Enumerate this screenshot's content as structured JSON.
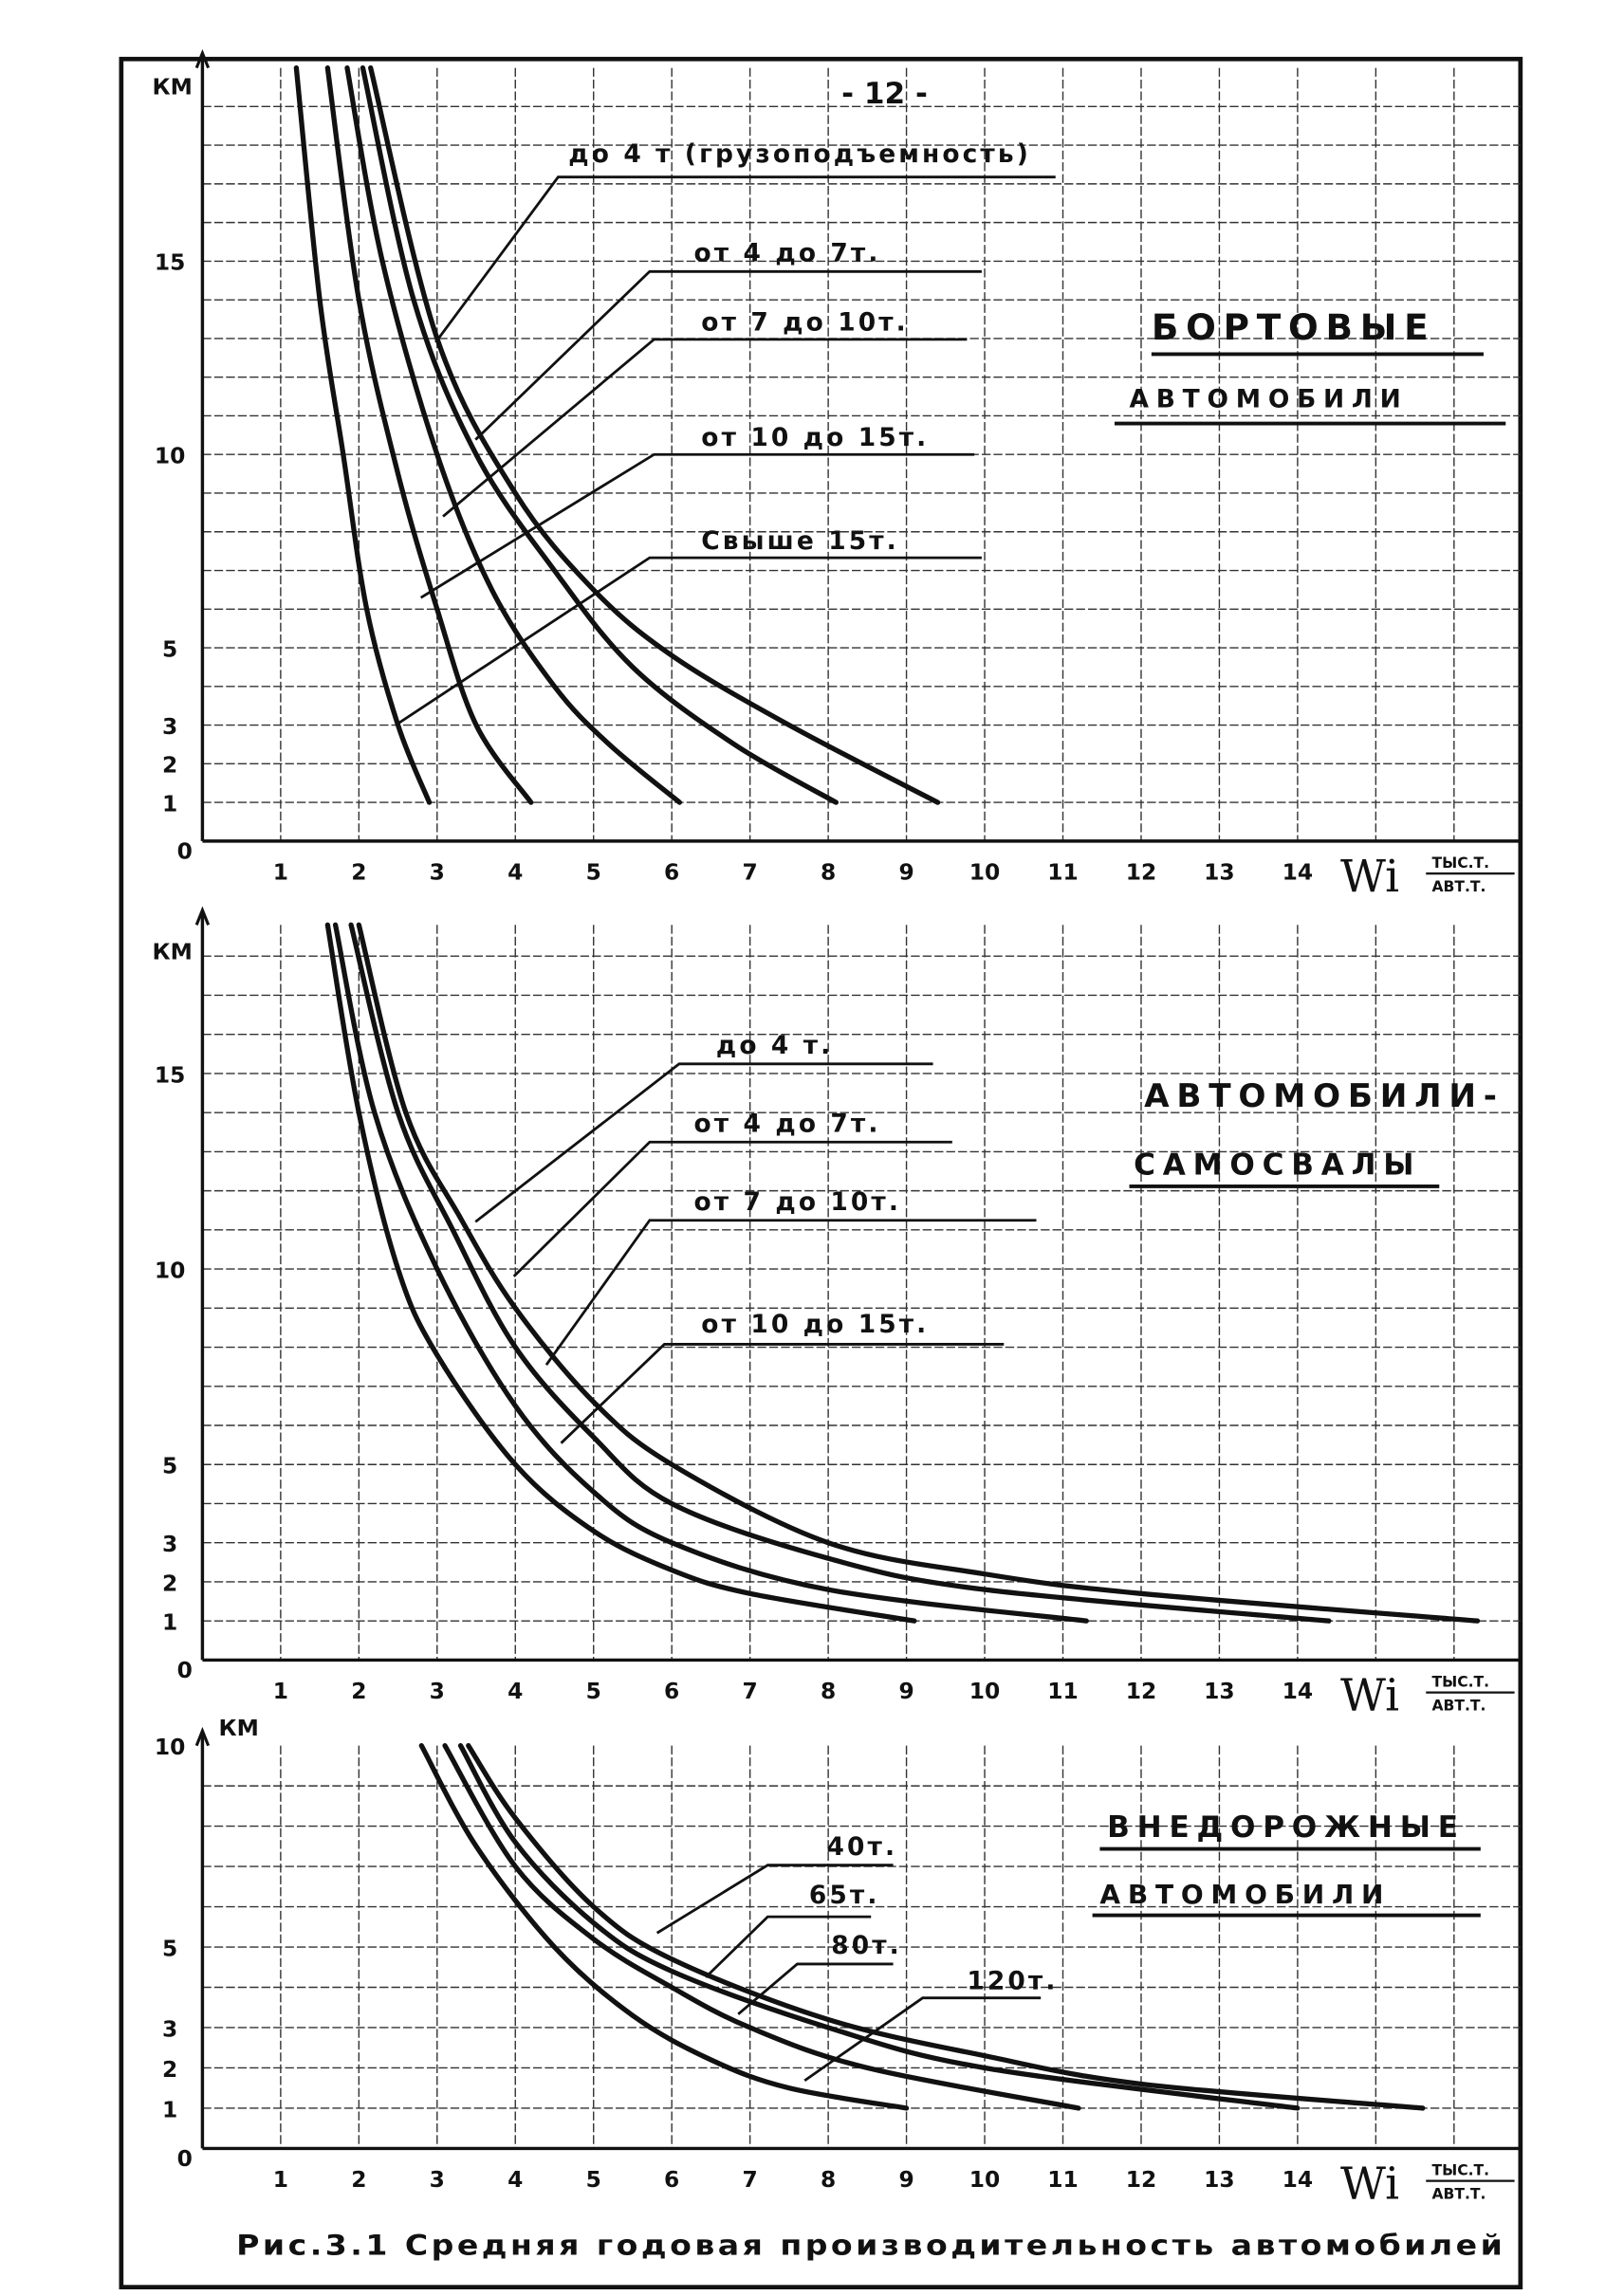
{
  "page_number": "- 12 -",
  "caption": "Рис.3.1  Средняя годовая производительность автомобилей",
  "chart_data": [
    {
      "type": "line",
      "title": [
        "Бортовые",
        "автомобили"
      ],
      "xlabel": "Wi, тыс.т / авт.т",
      "ylabel": "км",
      "xlim": [
        0,
        16.8
      ],
      "ylim": [
        0,
        20
      ],
      "xticks": [
        1,
        2,
        3,
        4,
        5,
        6,
        7,
        8,
        9,
        10,
        11,
        12,
        13,
        14
      ],
      "yticks": [
        15,
        10,
        5,
        3,
        2,
        1
      ],
      "grid": true,
      "series": [
        {
          "name": "до 4 т (грузоподъемность)",
          "points": [
            [
              2.15,
              20
            ],
            [
              3,
              13
            ],
            [
              4,
              9
            ],
            [
              5,
              6.5
            ],
            [
              6,
              4.8
            ],
            [
              7.5,
              3
            ],
            [
              9.4,
              1
            ]
          ]
        },
        {
          "name": "от 4 до 7т.",
          "points": [
            [
              2.05,
              20
            ],
            [
              2.7,
              14
            ],
            [
              3.5,
              10
            ],
            [
              4.5,
              7
            ],
            [
              5.5,
              4.5
            ],
            [
              6.8,
              2.5
            ],
            [
              8.1,
              1
            ]
          ]
        },
        {
          "name": "от 7 до 10т.",
          "points": [
            [
              1.85,
              20
            ],
            [
              2.3,
              15
            ],
            [
              3,
              10
            ],
            [
              3.7,
              6.5
            ],
            [
              4.5,
              4
            ],
            [
              5.2,
              2.5
            ],
            [
              6.1,
              1
            ]
          ]
        },
        {
          "name": "от 10 до 15т.",
          "points": [
            [
              1.6,
              20
            ],
            [
              2,
              14
            ],
            [
              2.5,
              9.5
            ],
            [
              3,
              6
            ],
            [
              3.5,
              3
            ],
            [
              4.2,
              1
            ]
          ]
        },
        {
          "name": "Свыше 15т.",
          "points": [
            [
              1.2,
              20
            ],
            [
              1.5,
              14
            ],
            [
              1.8,
              10
            ],
            [
              2.1,
              6
            ],
            [
              2.5,
              3
            ],
            [
              2.9,
              1
            ]
          ]
        }
      ]
    },
    {
      "type": "line",
      "title": [
        "Автомобили-",
        "самосвалы"
      ],
      "xlabel": "Wi, тыс.т / авт.т",
      "ylabel": "км",
      "xlim": [
        0,
        16.8
      ],
      "ylim": [
        0,
        18.8
      ],
      "xticks": [
        1,
        2,
        3,
        4,
        5,
        6,
        7,
        8,
        9,
        10,
        11,
        12,
        13,
        14
      ],
      "yticks": [
        15,
        10,
        5,
        3,
        2,
        1
      ],
      "grid": true,
      "series": [
        {
          "name": "до 4 т.",
          "points": [
            [
              2,
              18.8
            ],
            [
              2.6,
              14
            ],
            [
              3.3,
              11.3
            ],
            [
              4,
              9
            ],
            [
              5,
              6.6
            ],
            [
              6,
              5
            ],
            [
              8,
              3
            ],
            [
              10,
              2.2
            ],
            [
              12,
              1.7
            ],
            [
              16.3,
              1
            ]
          ]
        },
        {
          "name": "от 4 до 7т.",
          "points": [
            [
              1.9,
              18.8
            ],
            [
              2.5,
              14
            ],
            [
              3.2,
              11
            ],
            [
              4,
              8
            ],
            [
              5,
              5.7
            ],
            [
              6,
              4
            ],
            [
              8,
              2.6
            ],
            [
              10,
              1.8
            ],
            [
              14.4,
              1
            ]
          ]
        },
        {
          "name": "от 7 до 10т.",
          "points": [
            [
              1.7,
              18.8
            ],
            [
              2.2,
              14
            ],
            [
              3,
              10
            ],
            [
              4,
              6.5
            ],
            [
              5,
              4.3
            ],
            [
              6,
              3
            ],
            [
              8,
              1.8
            ],
            [
              11.3,
              1
            ]
          ]
        },
        {
          "name": "от 10 до 15т.",
          "points": [
            [
              1.6,
              18.8
            ],
            [
              2,
              14
            ],
            [
              2.5,
              10
            ],
            [
              3,
              7.8
            ],
            [
              4,
              5
            ],
            [
              5,
              3.3
            ],
            [
              6,
              2.3
            ],
            [
              7,
              1.7
            ],
            [
              9.1,
              1
            ]
          ]
        }
      ]
    },
    {
      "type": "line",
      "title": [
        "Внедорожные",
        "автомобили"
      ],
      "xlabel": "Wi, тыс.т / авт.т",
      "ylabel": "км",
      "xlim": [
        0,
        16.8
      ],
      "ylim": [
        0,
        10
      ],
      "xticks": [
        1,
        2,
        3,
        4,
        5,
        6,
        7,
        8,
        9,
        10,
        11,
        12,
        13,
        14
      ],
      "yticks": [
        10,
        5,
        3,
        2,
        1
      ],
      "grid": true,
      "series": [
        {
          "name": "40т.",
          "points": [
            [
              3.4,
              10
            ],
            [
              4,
              8.2
            ],
            [
              5,
              6
            ],
            [
              6,
              4.7
            ],
            [
              8,
              3.2
            ],
            [
              10,
              2.3
            ],
            [
              12,
              1.6
            ],
            [
              15.6,
              1
            ]
          ]
        },
        {
          "name": "65т.",
          "points": [
            [
              3.3,
              10
            ],
            [
              4,
              7.6
            ],
            [
              5,
              5.6
            ],
            [
              6,
              4.4
            ],
            [
              8,
              3
            ],
            [
              10,
              2
            ],
            [
              14,
              1
            ]
          ]
        },
        {
          "name": "80т.",
          "points": [
            [
              3.1,
              10
            ],
            [
              4,
              7
            ],
            [
              5,
              5.2
            ],
            [
              6,
              4
            ],
            [
              7,
              3
            ],
            [
              8.5,
              2
            ],
            [
              11.2,
              1
            ]
          ]
        },
        {
          "name": "120т.",
          "points": [
            [
              2.8,
              10
            ],
            [
              3.5,
              7.5
            ],
            [
              4.5,
              5
            ],
            [
              5.5,
              3.3
            ],
            [
              6.5,
              2.2
            ],
            [
              7.5,
              1.5
            ],
            [
              9,
              1
            ]
          ]
        }
      ]
    }
  ],
  "axis_text": {
    "origin": "0",
    "x_symbol": "Wi",
    "x_unit_top": "тыс.т.",
    "x_unit_bottom": "авт.т.",
    "y_unit": "км"
  },
  "colors": {
    "ink": "#111111",
    "paper": "#ffffff"
  }
}
